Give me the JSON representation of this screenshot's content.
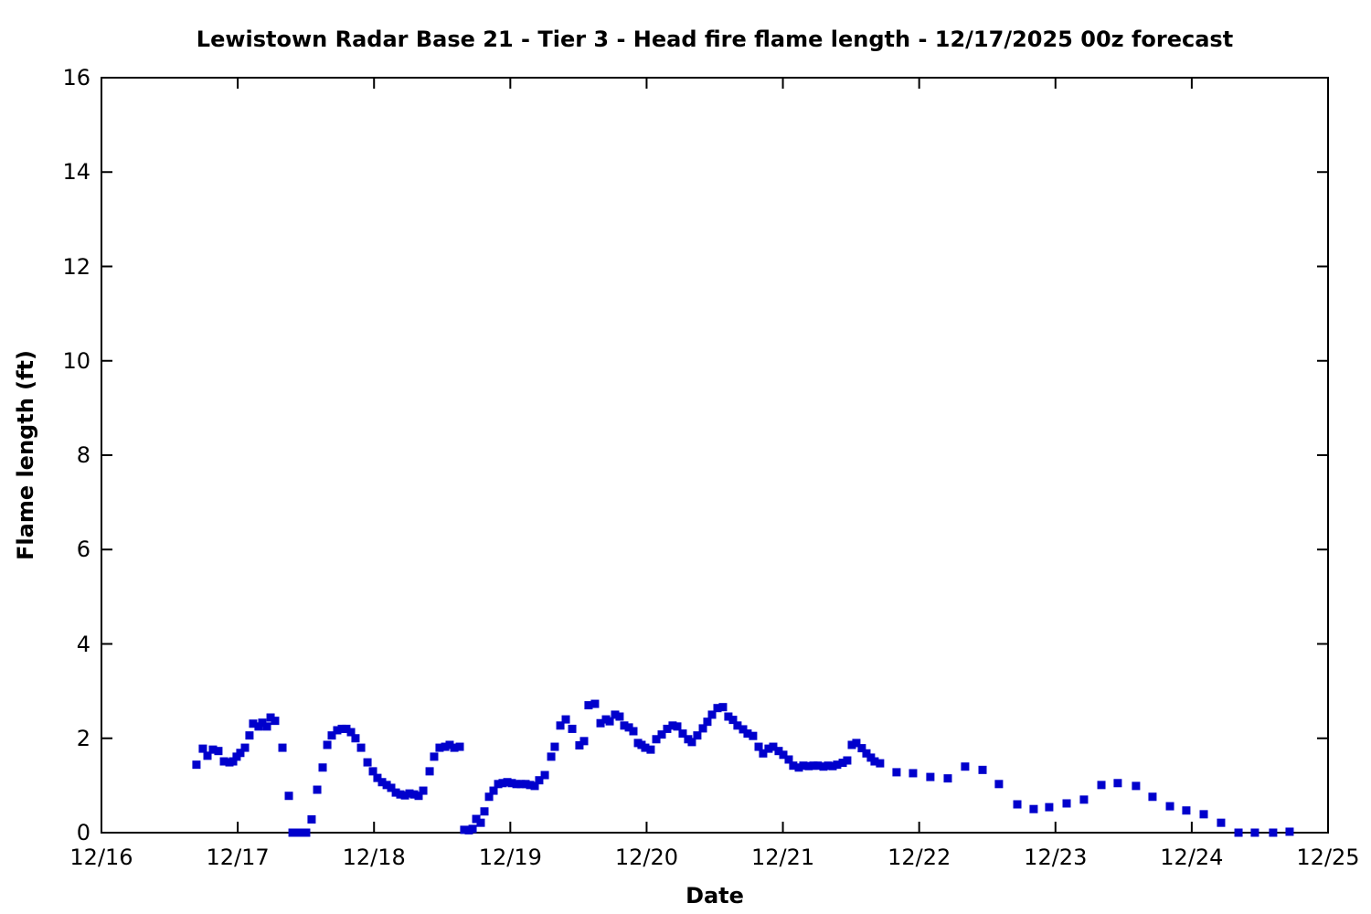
{
  "chart_data": {
    "type": "scatter",
    "title": "Lewistown Radar Base 21 - Tier 3 - Head fire flame length - 12/17/2025 00z forecast",
    "xlabel": "Date",
    "ylabel": "Flame length (ft)",
    "x_tick_labels": [
      "12/16",
      "12/17",
      "12/18",
      "12/19",
      "12/20",
      "12/21",
      "12/22",
      "12/23",
      "12/24",
      "12/25"
    ],
    "y_ticks": [
      0,
      2,
      4,
      6,
      8,
      10,
      12,
      14,
      16
    ],
    "xlim_days_after_12_16": [
      0,
      9
    ],
    "ylim": [
      0,
      16
    ],
    "grid": false,
    "legend": "none",
    "marker": "filled-square",
    "marker_size_px": 9,
    "marker_color": "#0000cc",
    "axis_color": "#000000",
    "background_color": "#ffffff",
    "points_format": "[days_after_12/16_00z, flame_length_ft]",
    "points": [
      [
        0.697,
        1.44
      ],
      [
        0.744,
        1.78
      ],
      [
        0.778,
        1.63
      ],
      [
        0.818,
        1.76
      ],
      [
        0.858,
        1.73
      ],
      [
        0.899,
        1.51
      ],
      [
        0.939,
        1.49
      ],
      [
        0.966,
        1.51
      ],
      [
        0.992,
        1.61
      ],
      [
        1.019,
        1.69
      ],
      [
        1.053,
        1.8
      ],
      [
        1.086,
        2.06
      ],
      [
        1.113,
        2.31
      ],
      [
        1.153,
        2.25
      ],
      [
        1.18,
        2.33
      ],
      [
        1.214,
        2.25
      ],
      [
        1.241,
        2.44
      ],
      [
        1.274,
        2.37
      ],
      [
        1.328,
        1.8
      ],
      [
        1.375,
        0.78
      ],
      [
        1.402,
        0.0
      ],
      [
        1.435,
        0.0
      ],
      [
        1.469,
        0.0
      ],
      [
        1.502,
        0.0
      ],
      [
        1.542,
        0.28
      ],
      [
        1.583,
        0.91
      ],
      [
        1.623,
        1.38
      ],
      [
        1.657,
        1.86
      ],
      [
        1.69,
        2.06
      ],
      [
        1.73,
        2.17
      ],
      [
        1.764,
        2.2
      ],
      [
        1.797,
        2.2
      ],
      [
        1.831,
        2.13
      ],
      [
        1.864,
        2.0
      ],
      [
        1.905,
        1.8
      ],
      [
        1.952,
        1.49
      ],
      [
        1.992,
        1.3
      ],
      [
        2.025,
        1.16
      ],
      [
        2.059,
        1.07
      ],
      [
        2.093,
        1.01
      ],
      [
        2.126,
        0.95
      ],
      [
        2.16,
        0.85
      ],
      [
        2.193,
        0.81
      ],
      [
        2.227,
        0.79
      ],
      [
        2.26,
        0.83
      ],
      [
        2.294,
        0.81
      ],
      [
        2.327,
        0.78
      ],
      [
        2.361,
        0.89
      ],
      [
        2.408,
        1.3
      ],
      [
        2.441,
        1.61
      ],
      [
        2.481,
        1.8
      ],
      [
        2.522,
        1.82
      ],
      [
        2.555,
        1.86
      ],
      [
        2.589,
        1.8
      ],
      [
        2.629,
        1.82
      ],
      [
        2.662,
        0.06
      ],
      [
        2.696,
        0.05
      ],
      [
        2.723,
        0.08
      ],
      [
        2.75,
        0.29
      ],
      [
        2.783,
        0.21
      ],
      [
        2.81,
        0.45
      ],
      [
        2.844,
        0.76
      ],
      [
        2.877,
        0.89
      ],
      [
        2.911,
        1.03
      ],
      [
        2.944,
        1.05
      ],
      [
        2.978,
        1.07
      ],
      [
        3.011,
        1.05
      ],
      [
        3.045,
        1.03
      ],
      [
        3.078,
        1.03
      ],
      [
        3.112,
        1.03
      ],
      [
        3.145,
        1.01
      ],
      [
        3.179,
        0.99
      ],
      [
        3.212,
        1.11
      ],
      [
        3.253,
        1.22
      ],
      [
        3.3,
        1.61
      ],
      [
        3.326,
        1.82
      ],
      [
        3.367,
        2.27
      ],
      [
        3.407,
        2.4
      ],
      [
        3.454,
        2.2
      ],
      [
        3.507,
        1.85
      ],
      [
        3.541,
        1.94
      ],
      [
        3.574,
        2.7
      ],
      [
        3.621,
        2.73
      ],
      [
        3.662,
        2.32
      ],
      [
        3.702,
        2.4
      ],
      [
        3.729,
        2.36
      ],
      [
        3.769,
        2.5
      ],
      [
        3.802,
        2.46
      ],
      [
        3.836,
        2.27
      ],
      [
        3.87,
        2.23
      ],
      [
        3.903,
        2.15
      ],
      [
        3.937,
        1.9
      ],
      [
        3.963,
        1.86
      ],
      [
        3.99,
        1.8
      ],
      [
        4.03,
        1.76
      ],
      [
        4.071,
        1.98
      ],
      [
        4.111,
        2.08
      ],
      [
        4.151,
        2.2
      ],
      [
        4.191,
        2.27
      ],
      [
        4.225,
        2.25
      ],
      [
        4.265,
        2.1
      ],
      [
        4.305,
        1.98
      ],
      [
        4.332,
        1.92
      ],
      [
        4.372,
        2.06
      ],
      [
        4.413,
        2.21
      ],
      [
        4.446,
        2.35
      ],
      [
        4.48,
        2.5
      ],
      [
        4.52,
        2.64
      ],
      [
        4.56,
        2.66
      ],
      [
        4.6,
        2.46
      ],
      [
        4.634,
        2.39
      ],
      [
        4.667,
        2.27
      ],
      [
        4.708,
        2.19
      ],
      [
        4.741,
        2.1
      ],
      [
        4.781,
        2.05
      ],
      [
        4.822,
        1.82
      ],
      [
        4.855,
        1.68
      ],
      [
        4.895,
        1.78
      ],
      [
        4.929,
        1.82
      ],
      [
        4.969,
        1.73
      ],
      [
        5.003,
        1.65
      ],
      [
        5.043,
        1.55
      ],
      [
        5.076,
        1.42
      ],
      [
        5.117,
        1.38
      ],
      [
        5.15,
        1.42
      ],
      [
        5.19,
        1.41
      ],
      [
        5.224,
        1.42
      ],
      [
        5.257,
        1.42
      ],
      [
        5.298,
        1.4
      ],
      [
        5.331,
        1.42
      ],
      [
        5.365,
        1.41
      ],
      [
        5.398,
        1.44
      ],
      [
        5.439,
        1.48
      ],
      [
        5.472,
        1.53
      ],
      [
        5.506,
        1.86
      ],
      [
        5.539,
        1.9
      ],
      [
        5.579,
        1.79
      ],
      [
        5.613,
        1.68
      ],
      [
        5.646,
        1.59
      ],
      [
        5.673,
        1.51
      ],
      [
        5.713,
        1.47
      ],
      [
        5.834,
        1.28
      ],
      [
        5.955,
        1.26
      ],
      [
        6.082,
        1.18
      ],
      [
        6.21,
        1.15
      ],
      [
        6.337,
        1.4
      ],
      [
        6.465,
        1.33
      ],
      [
        6.585,
        1.03
      ],
      [
        6.72,
        0.6
      ],
      [
        6.84,
        0.5
      ],
      [
        6.954,
        0.54
      ],
      [
        7.082,
        0.62
      ],
      [
        7.209,
        0.7
      ],
      [
        7.337,
        1.01
      ],
      [
        7.457,
        1.05
      ],
      [
        7.591,
        0.99
      ],
      [
        7.712,
        0.76
      ],
      [
        7.84,
        0.56
      ],
      [
        7.96,
        0.47
      ],
      [
        8.088,
        0.39
      ],
      [
        8.215,
        0.21
      ],
      [
        8.343,
        0.0
      ],
      [
        8.463,
        0.0
      ],
      [
        8.597,
        0.0
      ],
      [
        8.718,
        0.02
      ]
    ]
  }
}
